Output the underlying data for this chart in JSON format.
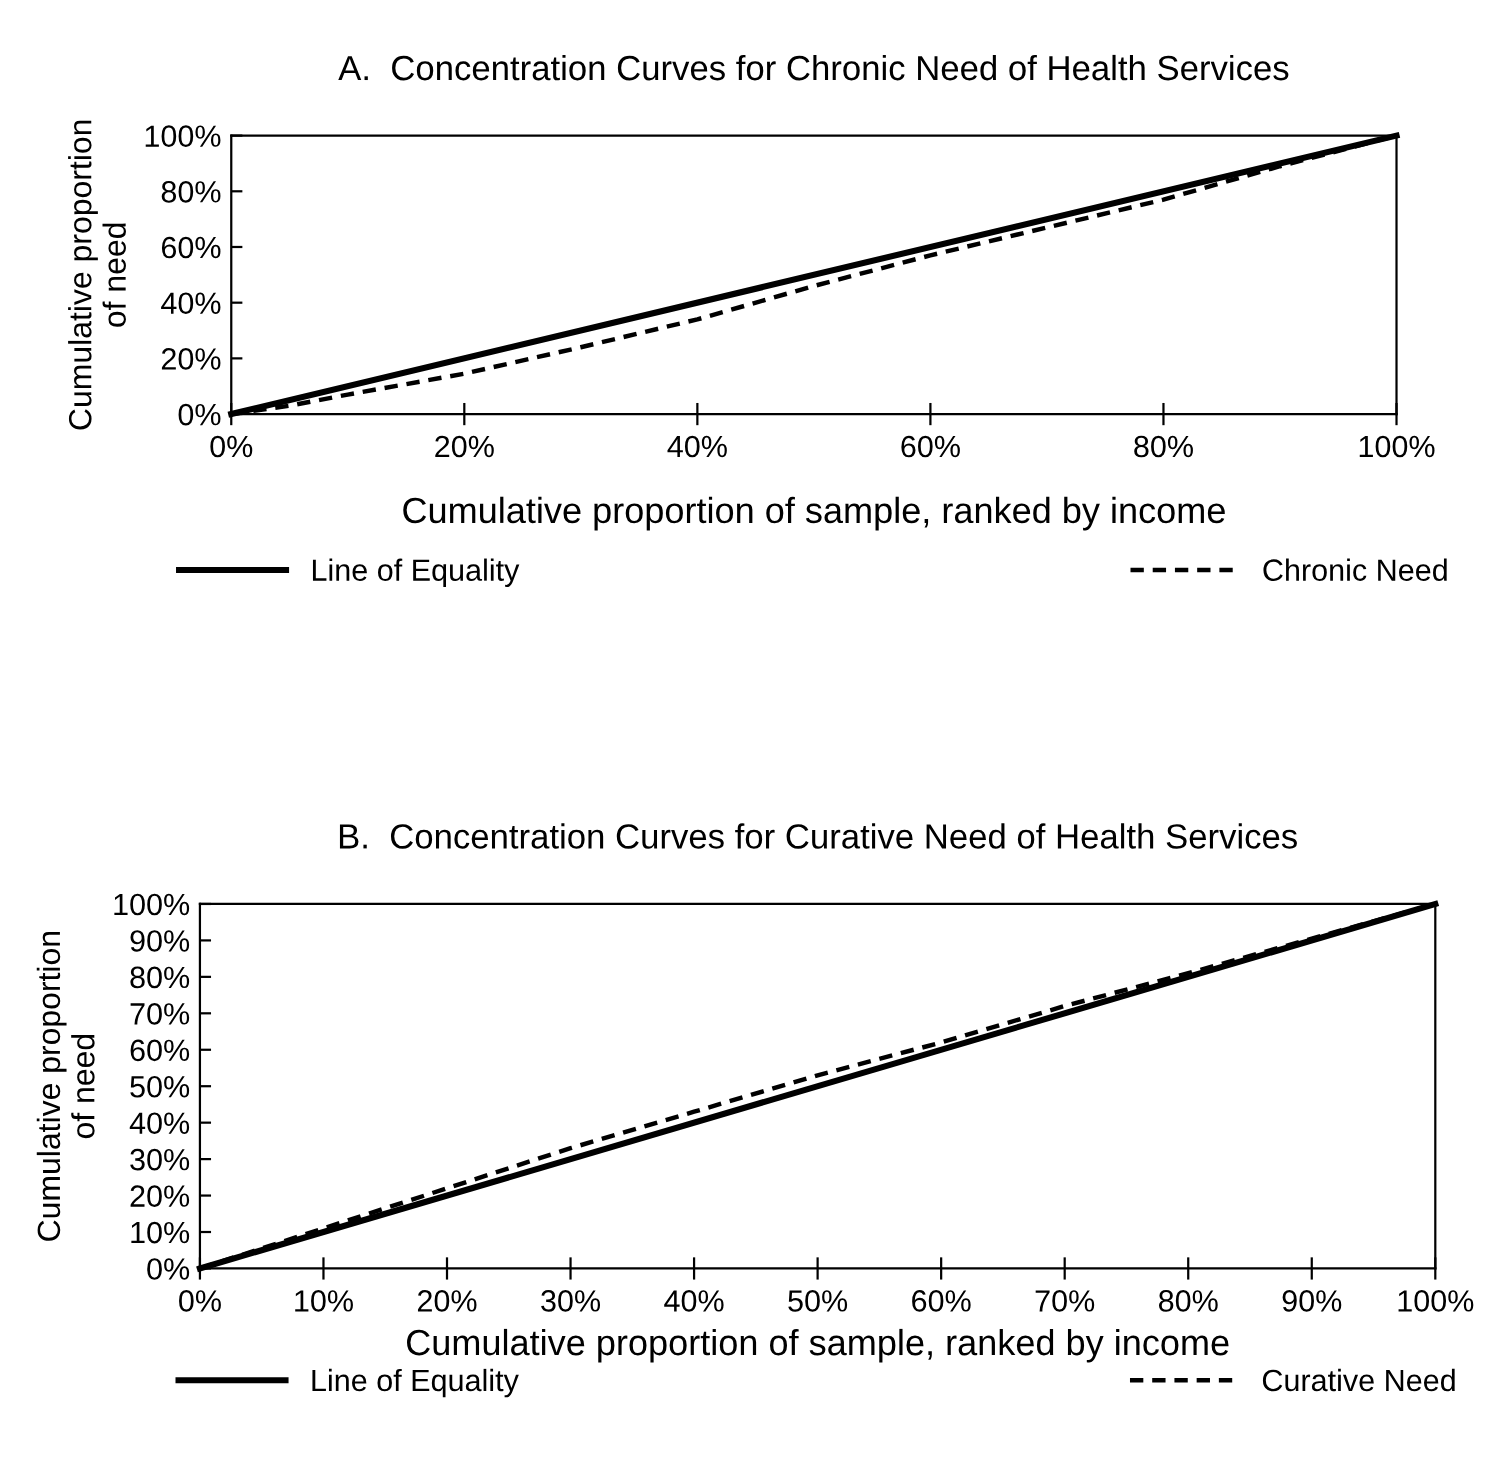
{
  "chart_data": [
    {
      "type": "line",
      "title": "A.  Concentration Curves for Chronic Need of Health Services",
      "xlabel": "Cumulative proportion of sample, ranked by income",
      "ylabel": "Cumulative proportion\nof need",
      "xlim": [
        0,
        100
      ],
      "ylim": [
        0,
        100
      ],
      "xticks": [
        {
          "value": 0,
          "label": "0%"
        },
        {
          "value": 20,
          "label": "20%"
        },
        {
          "value": 40,
          "label": "40%"
        },
        {
          "value": 60,
          "label": "60%"
        },
        {
          "value": 80,
          "label": "80%"
        },
        {
          "value": 100,
          "label": "100%"
        }
      ],
      "yticks": [
        {
          "value": 0,
          "label": "0%"
        },
        {
          "value": 20,
          "label": "20%"
        },
        {
          "value": 40,
          "label": "40%"
        },
        {
          "value": 60,
          "label": "60%"
        },
        {
          "value": 80,
          "label": "80%"
        },
        {
          "value": 100,
          "label": "100%"
        }
      ],
      "grid": false,
      "legend": "bottom",
      "marker": "none",
      "series": [
        {
          "name": "Line of Equality",
          "color": "#000000",
          "line_style": "solid",
          "x": [
            0,
            100
          ],
          "values": [
            0,
            100
          ]
        },
        {
          "name": "Chronic Need",
          "color": "#000000",
          "line_style": "dashed",
          "x": [
            0,
            5,
            10,
            20,
            30,
            40,
            50,
            60,
            70,
            80,
            90,
            100
          ],
          "values": [
            0,
            3,
            7,
            14.5,
            24,
            34,
            46,
            57,
            67,
            77,
            89,
            100
          ]
        }
      ]
    },
    {
      "type": "line",
      "title": "B.  Concentration Curves for Curative Need of Health Services",
      "xlabel": "Cumulative proportion of sample, ranked by income",
      "ylabel": "Cumulative proportion\nof need",
      "xlim": [
        0,
        100
      ],
      "ylim": [
        0,
        100
      ],
      "xticks": [
        {
          "value": 0,
          "label": "0%"
        },
        {
          "value": 10,
          "label": "10%"
        },
        {
          "value": 20,
          "label": "20%"
        },
        {
          "value": 30,
          "label": "30%"
        },
        {
          "value": 40,
          "label": "40%"
        },
        {
          "value": 50,
          "label": "50%"
        },
        {
          "value": 60,
          "label": "60%"
        },
        {
          "value": 70,
          "label": "70%"
        },
        {
          "value": 80,
          "label": "80%"
        },
        {
          "value": 90,
          "label": "90%"
        },
        {
          "value": 100,
          "label": "100%"
        }
      ],
      "yticks": [
        {
          "value": 0,
          "label": "0%"
        },
        {
          "value": 10,
          "label": "10%"
        },
        {
          "value": 20,
          "label": "20%"
        },
        {
          "value": 30,
          "label": "30%"
        },
        {
          "value": 40,
          "label": "40%"
        },
        {
          "value": 50,
          "label": "50%"
        },
        {
          "value": 60,
          "label": "60%"
        },
        {
          "value": 70,
          "label": "70%"
        },
        {
          "value": 80,
          "label": "80%"
        },
        {
          "value": 90,
          "label": "90%"
        },
        {
          "value": 100,
          "label": "100%"
        }
      ],
      "grid": false,
      "legend": "bottom",
      "marker": "none",
      "series": [
        {
          "name": "Line of Equality",
          "color": "#000000",
          "line_style": "solid",
          "x": [
            0,
            100
          ],
          "values": [
            0,
            100
          ]
        },
        {
          "name": "Curative Need",
          "color": "#000000",
          "line_style": "dashed",
          "x": [
            0,
            10,
            20,
            30,
            40,
            50,
            60,
            70,
            80,
            90,
            100
          ],
          "values": [
            0,
            11,
            22,
            33,
            43,
            53,
            62,
            72,
            81,
            90.5,
            100
          ]
        }
      ]
    }
  ]
}
